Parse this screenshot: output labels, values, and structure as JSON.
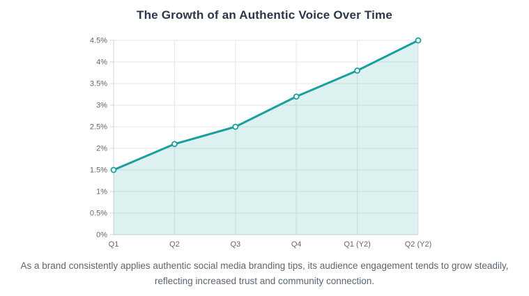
{
  "caption": {
    "text": "As a brand consistently applies authentic social media branding tips, its audience engagement tends to grow steadily, reflecting increased trust and community connection."
  },
  "chart_data": {
    "type": "area",
    "title": "The Growth of an Authentic Voice Over Time",
    "categories": [
      "Q1",
      "Q2",
      "Q3",
      "Q4",
      "Q1 (Y2)",
      "Q2 (Y2)"
    ],
    "values": [
      1.5,
      2.1,
      2.5,
      3.2,
      3.8,
      4.5
    ],
    "y_tick_values": [
      0,
      0.5,
      1,
      1.5,
      2,
      2.5,
      3,
      3.5,
      4,
      4.5
    ],
    "y_tick_labels": [
      "0%",
      "0.5%",
      "1%",
      "1.5%",
      "2%",
      "2.5%",
      "3%",
      "3.5%",
      "4%",
      "4.5%"
    ],
    "ylim": [
      0,
      4.5
    ],
    "xlabel": "",
    "ylabel": "",
    "grid": true,
    "legend": false,
    "colors": {
      "line": "#1a9f9f",
      "fill": "rgba(26,159,159,0.15)",
      "grid": "#e6e6e6",
      "axis_line": "#cfd4d9",
      "tick_text": "#666666",
      "title_text": "#2b3648",
      "caption_text": "#5b6670",
      "marker_fill": "#ffffff"
    }
  }
}
